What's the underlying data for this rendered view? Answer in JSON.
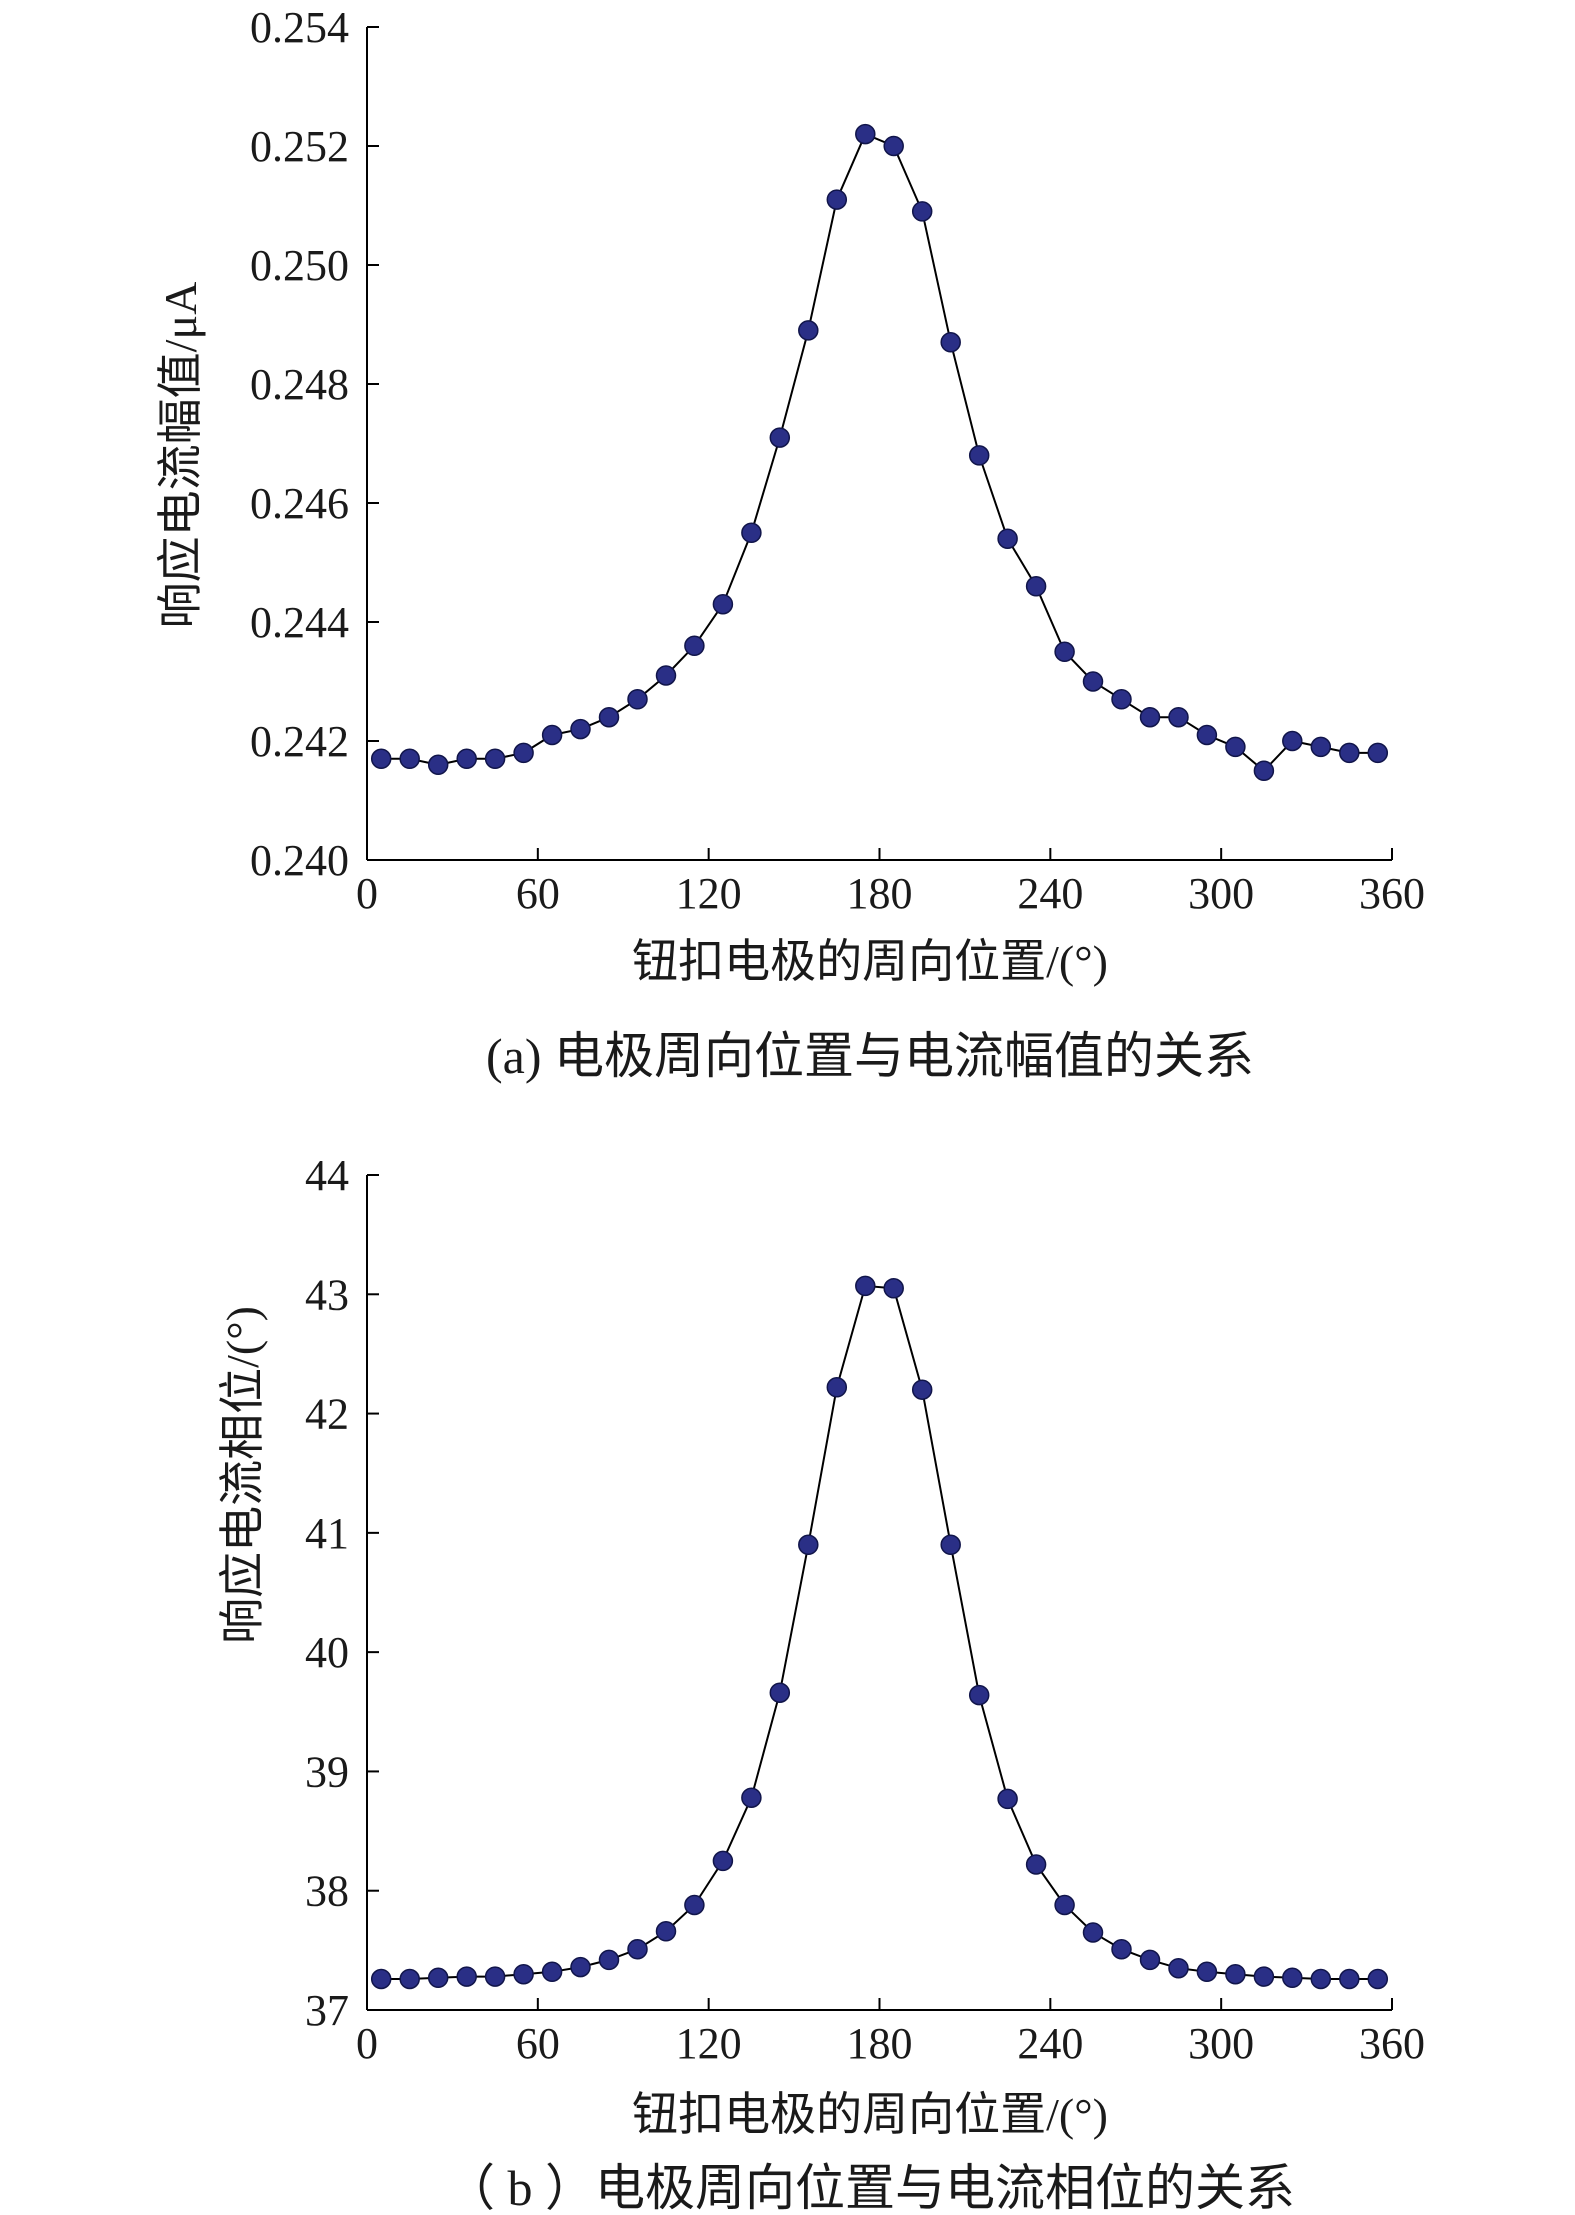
{
  "chart_data": [
    {
      "type": "line",
      "xlabel": "钮扣电极的周向位置/(°)",
      "ylabel": "响应电流幅值/μA",
      "caption": "(a) 电极周向位置与电流幅值的关系",
      "xlim": [
        0,
        360
      ],
      "ylim": [
        0.24,
        0.254
      ],
      "xticks": [
        "0",
        "60",
        "120",
        "180",
        "240",
        "300",
        "360"
      ],
      "yticks": [
        "0.240",
        "0.242",
        "0.244",
        "0.246",
        "0.248",
        "0.250",
        "0.252",
        "0.254"
      ],
      "grid": false,
      "legend": "none",
      "line_color": "#000000",
      "marker_color": "#2a2f86",
      "x": [
        5,
        15,
        25,
        35,
        45,
        55,
        65,
        75,
        85,
        95,
        105,
        115,
        125,
        135,
        145,
        155,
        165,
        175,
        185,
        195,
        205,
        215,
        225,
        235,
        245,
        255,
        265,
        275,
        285,
        295,
        305,
        315,
        325,
        335,
        345,
        355
      ],
      "values": [
        0.2417,
        0.2417,
        0.2416,
        0.2417,
        0.2417,
        0.2418,
        0.2421,
        0.2422,
        0.2424,
        0.2427,
        0.2431,
        0.2436,
        0.2443,
        0.2455,
        0.2471,
        0.2489,
        0.2511,
        0.2522,
        0.252,
        0.2509,
        0.2487,
        0.2468,
        0.2454,
        0.2446,
        0.2435,
        0.243,
        0.2427,
        0.2424,
        0.2424,
        0.2421,
        0.2419,
        0.2415,
        0.242,
        0.2419,
        0.2418,
        0.2418
      ]
    },
    {
      "type": "line",
      "xlabel": "钮扣电极的周向位置/(°)",
      "ylabel": "响应电流相位/(°)",
      "caption": "（ b ）电极周向位置与电流相位的关系",
      "xlim": [
        0,
        360
      ],
      "ylim": [
        37,
        44
      ],
      "xticks": [
        "0",
        "60",
        "120",
        "180",
        "240",
        "300",
        "360"
      ],
      "yticks": [
        "37",
        "38",
        "39",
        "40",
        "41",
        "42",
        "43",
        "44"
      ],
      "grid": false,
      "legend": "none",
      "line_color": "#000000",
      "marker_color": "#2a2f86",
      "x": [
        5,
        15,
        25,
        35,
        45,
        55,
        65,
        75,
        85,
        95,
        105,
        115,
        125,
        135,
        145,
        155,
        165,
        175,
        185,
        195,
        205,
        215,
        225,
        235,
        245,
        255,
        265,
        275,
        285,
        295,
        305,
        315,
        325,
        335,
        345,
        355
      ],
      "values": [
        37.26,
        37.26,
        37.27,
        37.28,
        37.28,
        37.3,
        37.32,
        37.36,
        37.42,
        37.51,
        37.66,
        37.88,
        38.25,
        38.78,
        39.66,
        40.9,
        42.22,
        43.07,
        43.05,
        42.2,
        40.9,
        39.64,
        38.77,
        38.22,
        37.88,
        37.65,
        37.51,
        37.42,
        37.35,
        37.32,
        37.3,
        37.28,
        37.27,
        37.26,
        37.26,
        37.26
      ]
    }
  ]
}
